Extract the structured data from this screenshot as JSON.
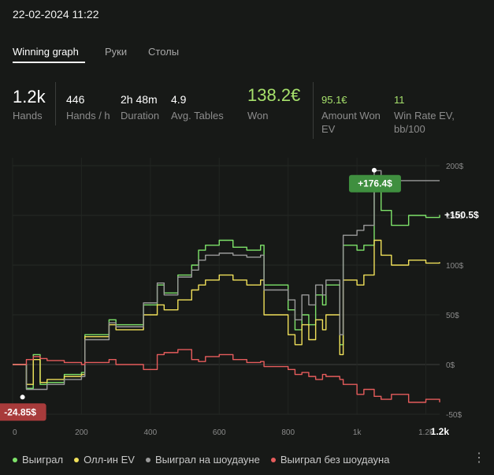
{
  "header": {
    "datetime": "22-02-2024 11:22"
  },
  "tabs": [
    {
      "label": "Winning graph",
      "active": true
    },
    {
      "label": "Руки",
      "active": false
    },
    {
      "label": "Столы",
      "active": false
    }
  ],
  "stats": {
    "hands": {
      "value": "1.2k",
      "label": "Hands"
    },
    "hands_per_h": {
      "value": "446",
      "label": "Hands / h"
    },
    "duration": {
      "value": "2h 48m",
      "label": "Duration"
    },
    "avg_tables": {
      "value": "4.9",
      "label": "Avg. Tables"
    },
    "won": {
      "value": "138.2€",
      "label": "Won"
    },
    "amount_won_ev": {
      "value": "95.1€",
      "label_line1": "Amount Won",
      "label_line2": "EV"
    },
    "win_rate_ev": {
      "value": "11",
      "label_line1": "Win Rate EV,",
      "label_line2": "bb/100"
    }
  },
  "chart_data": {
    "type": "line",
    "x_ticks": [
      "0",
      "200",
      "400",
      "600",
      "800",
      "1k",
      "1.2k"
    ],
    "x_end_label": "1.2k",
    "y_ticks": [
      "200$",
      "150$",
      "100$",
      "50$",
      "0$",
      "-50$"
    ],
    "xlim": [
      0,
      1240
    ],
    "ylim": [
      -50,
      200
    ],
    "grid": true,
    "max_badge": {
      "x": 1050,
      "y": 176.4,
      "label": "+176.4$"
    },
    "min_badge": {
      "x": 70,
      "y": -24.85,
      "label": "-24.85$"
    },
    "end_label": "+150.5$",
    "series": [
      {
        "name": "Выиграл",
        "color": "#7ee36a",
        "x": [
          0,
          40,
          60,
          80,
          100,
          150,
          200,
          210,
          280,
          300,
          380,
          420,
          440,
          480,
          520,
          540,
          560,
          600,
          640,
          680,
          720,
          730,
          800,
          820,
          840,
          860,
          880,
          900,
          910,
          950,
          960,
          1000,
          1020,
          1050,
          1070,
          1100,
          1150,
          1200,
          1240
        ],
        "y": [
          0,
          -24,
          10,
          -20,
          -18,
          -10,
          -8,
          30,
          45,
          40,
          60,
          80,
          72,
          90,
          100,
          115,
          120,
          125,
          118,
          115,
          120,
          80,
          55,
          35,
          50,
          40,
          70,
          60,
          80,
          20,
          120,
          115,
          120,
          176,
          155,
          140,
          150,
          148,
          150.5
        ]
      },
      {
        "name": "Олл-ин EV",
        "color": "#f0e05a",
        "x": [
          0,
          40,
          60,
          80,
          100,
          150,
          200,
          210,
          280,
          300,
          380,
          420,
          440,
          480,
          520,
          540,
          560,
          600,
          640,
          680,
          720,
          730,
          800,
          820,
          840,
          860,
          880,
          900,
          910,
          950,
          960,
          1000,
          1020,
          1050,
          1070,
          1100,
          1150,
          1200,
          1240
        ],
        "y": [
          0,
          -20,
          5,
          -18,
          -15,
          -12,
          -10,
          28,
          40,
          35,
          50,
          60,
          55,
          65,
          75,
          80,
          85,
          90,
          85,
          80,
          85,
          50,
          30,
          20,
          40,
          25,
          45,
          35,
          50,
          10,
          85,
          80,
          90,
          125,
          110,
          100,
          105,
          102,
          103
        ]
      },
      {
        "name": "Выиграл на шоудауне",
        "color": "#9a9a9a",
        "x": [
          0,
          40,
          60,
          80,
          100,
          150,
          200,
          210,
          280,
          300,
          380,
          420,
          440,
          480,
          520,
          540,
          560,
          600,
          640,
          680,
          720,
          730,
          800,
          820,
          840,
          860,
          880,
          900,
          910,
          950,
          960,
          1000,
          1020,
          1050,
          1070,
          1100,
          1150,
          1200,
          1240
        ],
        "y": [
          0,
          -25,
          -25,
          -25,
          -20,
          -15,
          -12,
          25,
          42,
          38,
          62,
          82,
          70,
          88,
          95,
          105,
          110,
          112,
          110,
          108,
          110,
          75,
          65,
          45,
          70,
          60,
          80,
          70,
          85,
          30,
          130,
          135,
          140,
          195,
          180,
          185,
          185,
          185,
          185
        ]
      },
      {
        "name": "Выиграл без шоудауна",
        "color": "#e65c5c",
        "x": [
          0,
          40,
          60,
          80,
          100,
          150,
          200,
          210,
          280,
          300,
          380,
          420,
          440,
          480,
          520,
          540,
          560,
          600,
          640,
          680,
          720,
          730,
          800,
          820,
          840,
          860,
          880,
          900,
          910,
          950,
          960,
          1000,
          1020,
          1050,
          1070,
          1100,
          1150,
          1200,
          1240
        ],
        "y": [
          0,
          5,
          8,
          6,
          4,
          2,
          0,
          2,
          5,
          0,
          -5,
          10,
          12,
          15,
          5,
          3,
          8,
          10,
          5,
          2,
          3,
          -2,
          -5,
          -10,
          -8,
          -12,
          -15,
          -10,
          -12,
          -15,
          -20,
          -30,
          -25,
          -32,
          -35,
          -30,
          -38,
          -35,
          -38
        ]
      }
    ]
  },
  "legend": [
    {
      "label": "Выиграл",
      "color": "#7ee36a"
    },
    {
      "label": "Олл-ин EV",
      "color": "#f0e05a"
    },
    {
      "label": "Выиграл на шоудауне",
      "color": "#9a9a9a"
    },
    {
      "label": "Выиграл без шоудауна",
      "color": "#e65c5c"
    }
  ],
  "more_icon": "⋮"
}
